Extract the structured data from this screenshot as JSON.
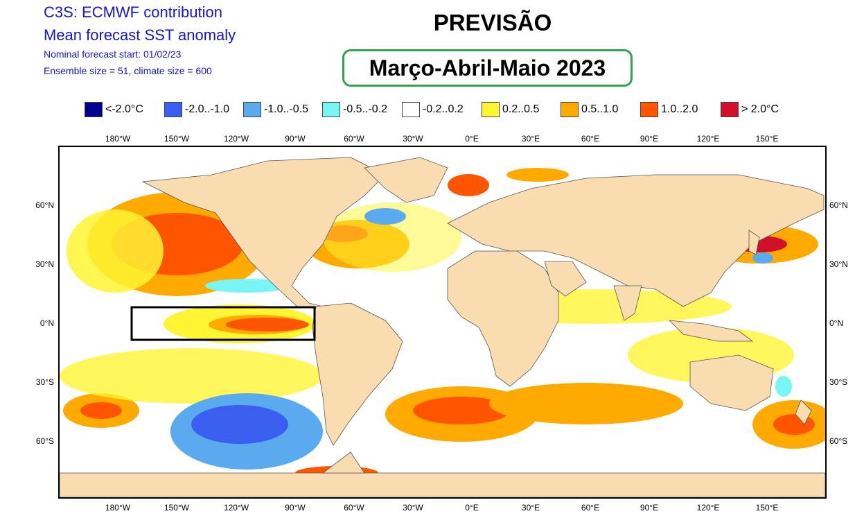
{
  "header": {
    "line1": "C3S: ECMWF contribution",
    "line2": "Mean forecast SST anomaly",
    "line3": "Nominal forecast start: 01/02/23",
    "line4": "Ensemble size = 51, climate size = 600"
  },
  "headline": "PREVISÃO",
  "season": "Março-Abril-Maio 2023",
  "legend": [
    {
      "label": "<-2.0°C",
      "color": "#00008f"
    },
    {
      "label": "-2.0..-1.0",
      "color": "#3a5ef0"
    },
    {
      "label": "-1.0..-0.5",
      "color": "#5aaaf0"
    },
    {
      "label": "-0.5..-0.2",
      "color": "#7af5f5"
    },
    {
      "label": "-0.2..0.2",
      "color": "#ffffff"
    },
    {
      "label": "0.2..0.5",
      "color": "#fff532"
    },
    {
      "label": "0.5..1.0",
      "color": "#ffaa00"
    },
    {
      "label": "1.0..2.0",
      "color": "#ff5500"
    },
    {
      "label": "> 2.0°C",
      "color": "#d2102a"
    }
  ],
  "axes": {
    "lon_labels": [
      "180°W",
      "150°W",
      "120°W",
      "90°W",
      "60°W",
      "30°W",
      "0°E",
      "30°E",
      "60°E",
      "90°E",
      "120°E",
      "150°E"
    ],
    "lat_labels": [
      "60°N",
      "30°N",
      "0°N",
      "30°S",
      "60°S"
    ]
  },
  "colors": {
    "land": "#f9dcb0",
    "highlight_box": "#000000",
    "season_frame": "#2ea44f",
    "meta_text": "#1414d2"
  },
  "highlighted_region": "Niño 3.4 / equatorial eastern Pacific"
}
